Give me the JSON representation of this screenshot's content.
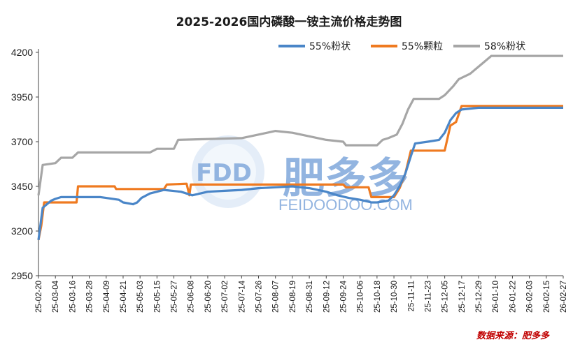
{
  "chart_data": {
    "type": "line",
    "title": "2025-2026国内磷酸一铵主流价格走势图",
    "ylim": [
      2950,
      4200
    ],
    "yticks": [
      2950,
      3200,
      3450,
      3700,
      3950,
      4200
    ],
    "grid": false,
    "legend_position": "top-right",
    "x_tick_labels": [
      "25-02-20",
      "25-03-04",
      "25-03-16",
      "25-03-28",
      "25-04-09",
      "25-04-21",
      "25-05-03",
      "25-05-15",
      "25-05-27",
      "25-06-08",
      "25-06-20",
      "25-07-02",
      "25-07-14",
      "25-07-26",
      "25-08-07",
      "25-08-19",
      "25-08-31",
      "25-09-12",
      "25-09-24",
      "25-10-06",
      "25-10-18",
      "25-10-30",
      "25-11-11",
      "25-11-23",
      "25-12-05",
      "25-12-17",
      "25-12-29",
      "26-01-10",
      "26-01-22",
      "26-02-03",
      "26-02-15",
      "26-02-27"
    ],
    "series": [
      {
        "name": "55%粉状",
        "color": "#4a86c8",
        "points": [
          [
            "25-02-20",
            3150
          ],
          [
            "25-02-23",
            3330
          ],
          [
            "25-03-01",
            3370
          ],
          [
            "25-03-04",
            3380
          ],
          [
            "25-03-08",
            3390
          ],
          [
            "25-04-05",
            3390
          ],
          [
            "25-04-09",
            3385
          ],
          [
            "25-04-18",
            3375
          ],
          [
            "25-04-21",
            3360
          ],
          [
            "25-04-28",
            3350
          ],
          [
            "25-05-01",
            3360
          ],
          [
            "25-05-04",
            3385
          ],
          [
            "25-05-10",
            3410
          ],
          [
            "25-05-20",
            3430
          ],
          [
            "25-06-01",
            3420
          ],
          [
            "25-06-09",
            3400
          ],
          [
            "25-06-20",
            3420
          ],
          [
            "25-07-02",
            3425
          ],
          [
            "25-07-14",
            3430
          ],
          [
            "25-07-26",
            3440
          ],
          [
            "25-08-07",
            3445
          ],
          [
            "25-08-19",
            3450
          ],
          [
            "25-08-31",
            3440
          ],
          [
            "25-09-06",
            3430
          ],
          [
            "25-09-12",
            3420
          ],
          [
            "25-09-20",
            3400
          ],
          [
            "25-09-28",
            3385
          ],
          [
            "25-10-06",
            3375
          ],
          [
            "25-10-14",
            3360
          ],
          [
            "25-10-18",
            3360
          ],
          [
            "25-10-26",
            3370
          ],
          [
            "25-10-30",
            3400
          ],
          [
            "25-11-03",
            3450
          ],
          [
            "25-11-07",
            3520
          ],
          [
            "25-11-11",
            3620
          ],
          [
            "25-11-14",
            3690
          ],
          [
            "25-11-23",
            3700
          ],
          [
            "25-12-01",
            3710
          ],
          [
            "25-12-05",
            3750
          ],
          [
            "25-12-09",
            3820
          ],
          [
            "25-12-13",
            3860
          ],
          [
            "25-12-17",
            3880
          ],
          [
            "25-12-29",
            3890
          ],
          [
            "26-01-10",
            3890
          ],
          [
            "26-01-22",
            3890
          ],
          [
            "26-02-03",
            3890
          ],
          [
            "26-02-15",
            3890
          ],
          [
            "26-02-27",
            3890
          ]
        ]
      },
      {
        "name": "55%颗粒",
        "color": "#ef7a20",
        "points": [
          [
            "25-02-20",
            3150
          ],
          [
            "25-02-22",
            3230
          ],
          [
            "25-02-24",
            3360
          ],
          [
            "25-03-12",
            3360
          ],
          [
            "25-03-19",
            3360
          ],
          [
            "25-03-20",
            3450
          ],
          [
            "25-04-15",
            3450
          ],
          [
            "25-04-16",
            3435
          ],
          [
            "25-05-20",
            3435
          ],
          [
            "25-05-22",
            3460
          ],
          [
            "25-06-05",
            3465
          ],
          [
            "25-06-07",
            3400
          ],
          [
            "25-06-08",
            3460
          ],
          [
            "25-09-24",
            3460
          ],
          [
            "25-09-26",
            3445
          ],
          [
            "25-10-12",
            3445
          ],
          [
            "25-10-14",
            3390
          ],
          [
            "25-10-30",
            3390
          ],
          [
            "25-11-03",
            3440
          ],
          [
            "25-11-07",
            3520
          ],
          [
            "25-11-11",
            3650
          ],
          [
            "25-11-13",
            3650
          ],
          [
            "25-12-05",
            3650
          ],
          [
            "25-12-09",
            3790
          ],
          [
            "25-12-13",
            3810
          ],
          [
            "25-12-17",
            3900
          ],
          [
            "26-02-27",
            3900
          ]
        ]
      },
      {
        "name": "58%粉状",
        "color": "#a6a6a6",
        "points": [
          [
            "25-02-20",
            3400
          ],
          [
            "25-02-23",
            3570
          ],
          [
            "25-03-04",
            3580
          ],
          [
            "25-03-08",
            3610
          ],
          [
            "25-03-16",
            3610
          ],
          [
            "25-03-20",
            3640
          ],
          [
            "25-05-10",
            3640
          ],
          [
            "25-05-15",
            3660
          ],
          [
            "25-05-27",
            3660
          ],
          [
            "25-05-30",
            3710
          ],
          [
            "25-07-14",
            3720
          ],
          [
            "25-07-26",
            3740
          ],
          [
            "25-08-07",
            3760
          ],
          [
            "25-08-19",
            3750
          ],
          [
            "25-08-31",
            3730
          ],
          [
            "25-09-12",
            3710
          ],
          [
            "25-09-24",
            3700
          ],
          [
            "25-09-26",
            3680
          ],
          [
            "25-10-18",
            3680
          ],
          [
            "25-10-22",
            3710
          ],
          [
            "25-10-26",
            3720
          ],
          [
            "25-11-01",
            3740
          ],
          [
            "25-11-05",
            3800
          ],
          [
            "25-11-09",
            3880
          ],
          [
            "25-11-13",
            3940
          ],
          [
            "25-12-01",
            3940
          ],
          [
            "25-12-05",
            3960
          ],
          [
            "25-12-11",
            4010
          ],
          [
            "25-12-15",
            4050
          ],
          [
            "25-12-23",
            4080
          ],
          [
            "26-01-01",
            4140
          ],
          [
            "26-01-07",
            4180
          ],
          [
            "26-02-27",
            4180
          ]
        ]
      }
    ]
  },
  "watermark": {
    "badge": "FDD",
    "brand": "肥多多",
    "url": "FEIDOODOO.COM"
  },
  "source": "数据来源：肥多多"
}
